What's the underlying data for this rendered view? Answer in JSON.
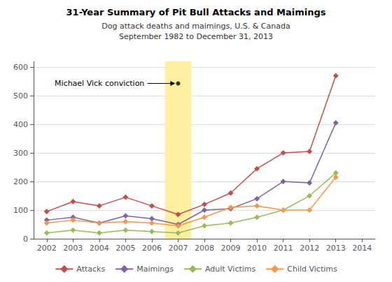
{
  "chart_data": {
    "type": "line",
    "title": "31-Year Summary of Pit Bull Attacks and Maimings",
    "subtitle": "Dog attack deaths and maimings, U.S. & Canada\nSeptember 1982 to December 31, 2013",
    "x": [
      2002,
      2003,
      2004,
      2005,
      2006,
      2007,
      2008,
      2009,
      2010,
      2011,
      2012,
      2013
    ],
    "series": [
      {
        "name": "Attacks",
        "color": "#C0504D",
        "marker": "diamond",
        "values": [
          95,
          130,
          115,
          145,
          115,
          85,
          120,
          160,
          245,
          300,
          305,
          570
        ]
      },
      {
        "name": "Maimings",
        "color": "#8064A2",
        "marker": "diamond",
        "values": [
          65,
          75,
          55,
          80,
          70,
          50,
          100,
          105,
          140,
          200,
          195,
          405
        ]
      },
      {
        "name": "Adult Victims",
        "color": "#9BBB59",
        "marker": "diamond",
        "values": [
          20,
          30,
          20,
          30,
          25,
          20,
          45,
          55,
          75,
          100,
          150,
          230
        ]
      },
      {
        "name": "Child Victims",
        "color": "#F79646",
        "marker": "diamond",
        "values": [
          55,
          65,
          55,
          60,
          55,
          45,
          75,
          110,
          115,
          100,
          100,
          215
        ]
      }
    ],
    "xlim": [
      2001.5,
      2014.5
    ],
    "xticks": [
      2002,
      2003,
      2004,
      2005,
      2006,
      2007,
      2008,
      2009,
      2010,
      2011,
      2012,
      2013,
      2014
    ],
    "ylim": [
      0,
      620
    ],
    "yticks": [
      0,
      100,
      200,
      300,
      400,
      500,
      600
    ],
    "grid": "y",
    "legend": "bottom",
    "highlight": {
      "x": [
        2006.5,
        2007.5
      ],
      "color": "#FFEF9F"
    },
    "annotations": [
      {
        "text": "Michael Vick conviction",
        "x": 2007,
        "y": 543,
        "text_x": 2002.3,
        "marker": "circle",
        "color": "#000000"
      }
    ]
  }
}
